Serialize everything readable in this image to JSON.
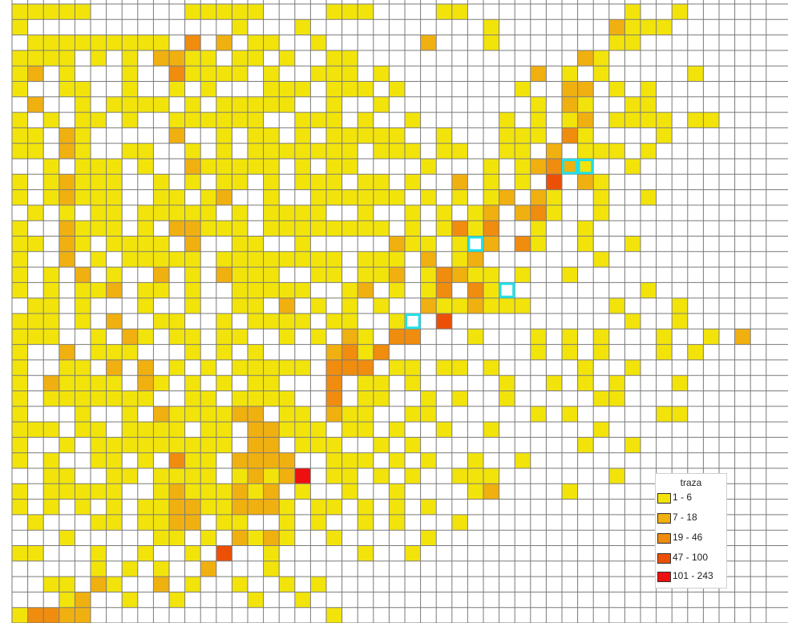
{
  "map": {
    "rows": [
      "00000......00000....000....00..........0..0..",
      "0.............0...0...........0.......1000..",
      ".000000000.2.1.00..0......1...0.......00.....",
      "0000.0.0.1100.00.0..00..............10.......",
      "01.0...0..20000.0..000.0.........1.0.0.....0.",
      "0..00..0..0.0...000.000.0.......0..11.0.0....",
      ".1..0.0000.0.00000..0..0.........0.10..00....",
      "0.0.00.0..000000..000.0..0.....0.0.01.0000.00",
      "00.10.....1..0.00.0.00000..0...000.20....0...",
      "00.10..00..0.0.0000000.000.00..00.1.000.0....",
      "..0.000.0..100000.0.00....0...0.01210..0.....",
      "0.01000..0.0.00.0.000.00.0..1.0.0.3.10.......",
      "0.01000..00.01..0..000000.0.0.01.10..0..0....",
      ".0.0.00.00000.0.0000..0..0.0.01.120..0.......",
      "0..1000.0.11000.00000000.0.0202..0..0........",
      "00.10.0000.1..00..0.....100.0.1.20..0..0.....",
      "0..1.0.00000.00000000.000.1.01.......0........",
      "0.0.1.0..1.0.1000..00.001.02100.0..0.........",
      "0.0.001.00.0..00000..01.0.02.20.........0.....",
      ".00.0...0..0..00.1.0.0.0..1001000.....0...0..",
      "000.0.1..00..0.0000.00..0..3...........0..0..",
      "000..0.10.00.00..0.0.10.22...0...0.0.0...0..0.1",
      "0..1.000...0.0.0....1202.........0.0.0...0.0.",
      "0..00.1.1.0.0.00000.222.00.00.0.....0..0....",
      "0.10000.10.0.0.00...2.00.0.....0..0.0.0...0..",
      "0.0000000..00.0000..2.00..0.0..0.....00......",
      "0...0..0.1000011.00.100..00......0.0.....00..",
      "000.00.0000.00.11000.00.0..0..0......0....",
      "0..0.000000000.11.000..0.0..........0..0.....",
      "0.0..00.0.200.1111..000.0.0..0..0...........",
      "..00..00.0000.01014.00.0.0..000.......0......",
      "0.00000..01000101.0..0..0....01....0.........",
      "0.0.0.0.0011001110.00.0.0.0...........",
      ".0...00.0011.00..0.0..0.0...0.....",
      "...0.....00.0.1010..0.....0......",
      "00...0..0..0.3..0.....0..0.......",
      ".....0.0.0..1...0..............",
      "..00.10..1.0..0..0.0...........",
      "...01..0..0....0..0..........",
      "02211...............0..........."
    ],
    "highlighted_cells": [
      [
        35,
        10
      ],
      [
        36,
        10
      ],
      [
        29,
        15
      ],
      [
        31,
        18
      ],
      [
        25,
        20
      ]
    ],
    "level_colors": [
      "#f2e40a",
      "#f0b010",
      "#f08c0e",
      "#ec5006",
      "#ee1010"
    ]
  },
  "legend": {
    "title": "traza",
    "items": [
      {
        "label": "1 - 6",
        "color": "#f2e40a"
      },
      {
        "label": "7 - 18",
        "color": "#f0b010"
      },
      {
        "label": "19 - 46",
        "color": "#f08c0e"
      },
      {
        "label": "47 - 100",
        "color": "#ec5006"
      },
      {
        "label": "101 - 243",
        "color": "#ee1010"
      }
    ]
  }
}
